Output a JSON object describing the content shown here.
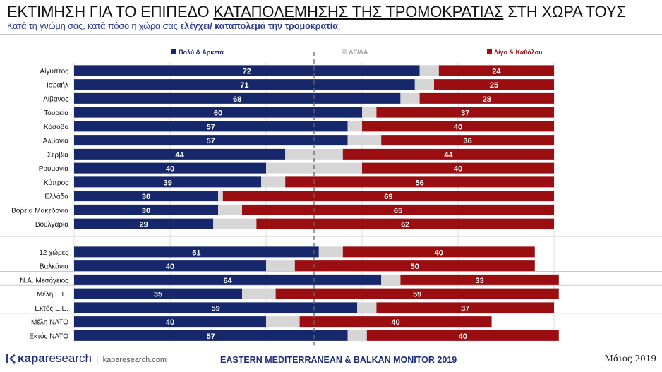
{
  "header": {
    "title_before": "ΕΚΤΙΜΗΣΗ ΓΙΑ ΤΟ ΕΠΙΠΕΔΟ ",
    "title_underlined": "ΚΑΤΑΠΟΛΕΜΗΣΗΣ ΤΗΣ ΤΡΟΜΟΚΡΑΤΙΑΣ",
    "title_after": " ΣΤΗ ΧΩΡΑ ΤΟΥΣ",
    "subtitle_before": "Κατά τη γνώμη σας, κατά πόσο η χώρα σας ",
    "subtitle_bold": "ελέγχει/ καταπολεμά την τρομοκρατία",
    "subtitle_after": ";"
  },
  "chart_data": {
    "type": "bar",
    "orientation": "horizontal-stacked",
    "legend_position": "top",
    "series": [
      {
        "name": "Πολύ & Αρκετά",
        "color": "#16286b",
        "labeled": true
      },
      {
        "name": "ΔΓ/ΔΑ",
        "color": "#d6d6d6",
        "labeled": false
      },
      {
        "name": "Λίγο & Καθόλου",
        "color": "#9a0e12",
        "labeled": true
      }
    ],
    "groups": [
      {
        "rows": [
          {
            "label": "Αίγυπτος",
            "values": [
              72,
              4,
              24
            ]
          },
          {
            "label": "Ισραήλ",
            "values": [
              71,
              4,
              25
            ]
          },
          {
            "label": "Λίβανος",
            "values": [
              68,
              4,
              28
            ]
          },
          {
            "label": "Τουρκία",
            "values": [
              60,
              3,
              37
            ]
          },
          {
            "label": "Κόσοβο",
            "values": [
              57,
              3,
              40
            ]
          },
          {
            "label": "Αλβανία",
            "values": [
              57,
              7,
              36
            ]
          },
          {
            "label": "Σερβία",
            "values": [
              44,
              12,
              44
            ]
          },
          {
            "label": "Ρουμανία",
            "values": [
              40,
              20,
              40
            ]
          },
          {
            "label": "Κύπρος",
            "values": [
              39,
              5,
              56
            ]
          },
          {
            "label": "Ελλάδα",
            "values": [
              30,
              1,
              69
            ]
          },
          {
            "label": "Βόρεια Μακεδονία",
            "values": [
              30,
              5,
              65
            ]
          },
          {
            "label": "Βουλγαρία",
            "values": [
              29,
              9,
              62
            ]
          }
        ]
      },
      {
        "rows": [
          {
            "label": "12 χώρες",
            "values": [
              51,
              5,
              40
            ]
          },
          {
            "label": "Βαλκάνια",
            "values": [
              40,
              6,
              50
            ]
          },
          {
            "label": "Ν.Α. Μεσόγειος",
            "values": [
              64,
              4,
              33
            ]
          },
          {
            "label": "Μέλη Ε.Ε.",
            "values": [
              35,
              7,
              59
            ]
          },
          {
            "label": "Εκτός Ε.Ε.",
            "values": [
              59,
              4,
              37
            ]
          },
          {
            "label": "Μέλη ΝΑΤΟ",
            "values": [
              40,
              7,
              40
            ]
          },
          {
            "label": "Εκτός ΝΑΤΟ",
            "values": [
              57,
              4,
              40
            ]
          }
        ]
      }
    ],
    "xlim": [
      0,
      100
    ],
    "divider_value": 50
  },
  "footer": {
    "logo_bold": "κapa",
    "logo_light": "research",
    "logo_separator": "|",
    "logo_url": "kaparesearch.com",
    "monitor": "EASTERN MEDITERRANEAN & BALKAN MONITOR 2019",
    "date": "Μάιος 2019",
    "logo_color": "#2b3a8c"
  }
}
